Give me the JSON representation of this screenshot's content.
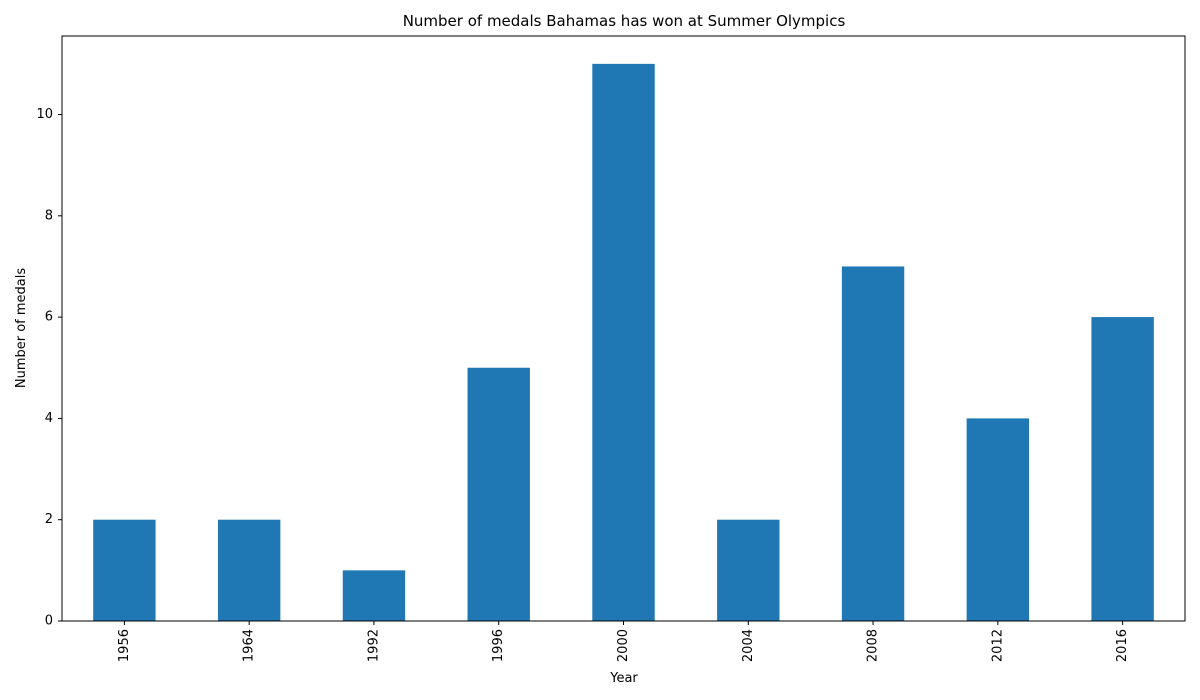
{
  "chart_data": {
    "type": "bar",
    "title": "Number of medals Bahamas has won at Summer Olympics",
    "xlabel": "Year",
    "ylabel": "Number of medals",
    "categories": [
      "1956",
      "1964",
      "1992",
      "1996",
      "2000",
      "2004",
      "2008",
      "2012",
      "2016"
    ],
    "values": [
      2,
      2,
      1,
      5,
      11,
      2,
      7,
      4,
      6
    ],
    "ylim": [
      0,
      11.55
    ],
    "yticks": [
      0,
      2,
      4,
      6,
      8,
      10
    ],
    "grid": false,
    "legend": "none",
    "bar_color": "#1f77b4",
    "xtick_rotation": "vertical"
  }
}
